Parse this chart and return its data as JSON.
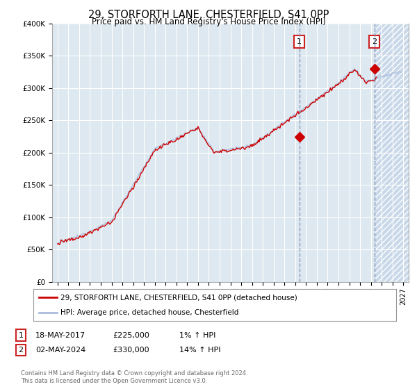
{
  "title": "29, STORFORTH LANE, CHESTERFIELD, S41 0PP",
  "subtitle": "Price paid vs. HM Land Registry's House Price Index (HPI)",
  "ylabel_ticks": [
    "£0",
    "£50K",
    "£100K",
    "£150K",
    "£200K",
    "£250K",
    "£300K",
    "£350K",
    "£400K"
  ],
  "ytick_values": [
    0,
    50000,
    100000,
    150000,
    200000,
    250000,
    300000,
    350000,
    400000
  ],
  "ylim": [
    0,
    400000
  ],
  "xlim_start": 1994.5,
  "xlim_end": 2027.5,
  "hpi_color": "#aabbdd",
  "price_color": "#cc0000",
  "dashed_line_color": "#8899bb",
  "marker1_year": 2017.38,
  "marker1_price": 225000,
  "marker2_year": 2024.34,
  "marker2_price": 330000,
  "annotation1_label": "1",
  "annotation1_date": "18-MAY-2017",
  "annotation1_price": "£225,000",
  "annotation1_hpi": "1% ↑ HPI",
  "annotation2_label": "2",
  "annotation2_date": "02-MAY-2024",
  "annotation2_price": "£330,000",
  "annotation2_hpi": "14% ↑ HPI",
  "legend_line1": "29, STORFORTH LANE, CHESTERFIELD, S41 0PP (detached house)",
  "legend_line2": "HPI: Average price, detached house, Chesterfield",
  "footer": "Contains HM Land Registry data © Crown copyright and database right 2024.\nThis data is licensed under the Open Government Licence v3.0.",
  "bg_color": "#ffffff",
  "plot_bg_color": "#dde8f0",
  "grid_color": "#ffffff",
  "hatch_color": "#c8d8e8",
  "x_tick_years": [
    1995,
    1996,
    1997,
    1998,
    1999,
    2000,
    2001,
    2002,
    2003,
    2004,
    2005,
    2006,
    2007,
    2008,
    2009,
    2010,
    2011,
    2012,
    2013,
    2014,
    2015,
    2016,
    2017,
    2018,
    2019,
    2020,
    2021,
    2022,
    2023,
    2024,
    2025,
    2026,
    2027
  ]
}
